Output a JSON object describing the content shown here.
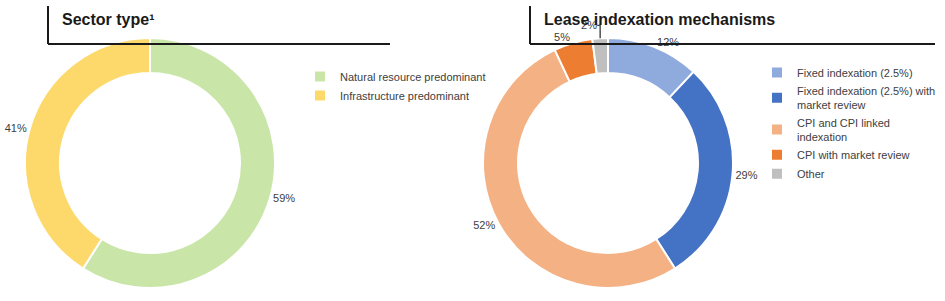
{
  "chart_data": [
    {
      "type": "pie",
      "title": "Sector type¹",
      "categories": [
        "Natural resource predominant",
        "Infrastructure predominant"
      ],
      "values": [
        59,
        41
      ],
      "value_labels": [
        "59%",
        "41%"
      ],
      "colors": [
        "#c9e6a8",
        "#fdd96b"
      ],
      "data_labels": true,
      "legend": "right"
    },
    {
      "type": "pie",
      "title": "Lease indexation mechanisms",
      "categories": [
        "Fixed indexation (2.5%)",
        "Fixed indexation (2.5%) with market review",
        "CPI and CPI linked indexation",
        "CPI with market review",
        "Other"
      ],
      "values": [
        12,
        29,
        52,
        5,
        2
      ],
      "value_labels": [
        "12%",
        "29%",
        "52%",
        "5%",
        "2%"
      ],
      "colors": [
        "#8faadc",
        "#4472c4",
        "#f4b183",
        "#ed7d31",
        "#bfbfbf"
      ],
      "data_labels": true,
      "legend": "right"
    }
  ]
}
